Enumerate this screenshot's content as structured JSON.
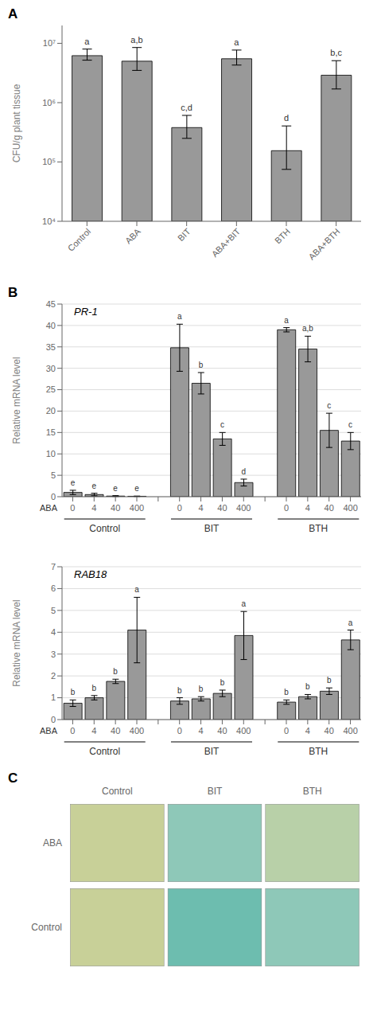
{
  "chart_data": [
    {
      "type": "bar",
      "categories": [
        "Control",
        "ABA",
        "BIT",
        "ABA+BIT",
        "BTH",
        "ABA+BTH"
      ],
      "values": [
        6200000,
        5000000,
        380000,
        5500000,
        155000,
        2900000
      ],
      "errors_lower": [
        1000000,
        1500000,
        130000,
        1200000,
        80000,
        1200000
      ],
      "errors_upper": [
        1800000,
        3500000,
        230000,
        2200000,
        250000,
        2200000
      ],
      "bar_labels": [
        "a",
        "a,b",
        "c,d",
        "a",
        "d",
        "b,c"
      ],
      "ylabel": "CFU/g plant tissue",
      "log": "y",
      "ylim": [
        10000,
        20000000
      ],
      "yticks": [
        {
          "value": 10000,
          "label": "10⁴"
        },
        {
          "value": 100000,
          "label": "10⁵"
        },
        {
          "value": 1000000,
          "label": "10⁶"
        },
        {
          "value": 10000000,
          "label": "10⁷"
        }
      ],
      "color": "#999999",
      "annotations": [
        "A"
      ]
    },
    {
      "type": "bar",
      "title": "PR-1",
      "groups": [
        "Control",
        "BIT",
        "BTH"
      ],
      "categories": [
        "0",
        "4",
        "40",
        "400",
        "0",
        "4",
        "40",
        "400",
        "0",
        "4",
        "40",
        "400"
      ],
      "values": [
        1.0,
        0.5,
        0.15,
        0.1,
        34.8,
        26.5,
        13.5,
        3.3,
        39.0,
        34.5,
        15.5,
        13.0
      ],
      "errors": [
        0.5,
        0.3,
        0.1,
        0.05,
        5.5,
        2.5,
        1.5,
        0.8,
        0.5,
        3.0,
        4.0,
        2.0
      ],
      "bar_labels": [
        "e",
        "e",
        "e",
        "e",
        "a",
        "b",
        "c",
        "d",
        "a",
        "a,b",
        "c",
        "c"
      ],
      "xlabel": "ABA",
      "ylabel": "Relative mRNA level",
      "ylim": [
        0,
        45
      ],
      "yticks": [
        0,
        5,
        10,
        15,
        20,
        25,
        30,
        35,
        40,
        45
      ],
      "grid": true,
      "color": "#999999",
      "annotations": [
        "B"
      ]
    },
    {
      "type": "bar",
      "title": "RAB18",
      "groups": [
        "Control",
        "BIT",
        "BTH"
      ],
      "categories": [
        "0",
        "4",
        "40",
        "400",
        "0",
        "4",
        "40",
        "400",
        "0",
        "4",
        "40",
        "400"
      ],
      "values": [
        0.75,
        1.0,
        1.75,
        4.1,
        0.85,
        0.95,
        1.2,
        3.85,
        0.8,
        1.05,
        1.3,
        3.65
      ],
      "errors": [
        0.15,
        0.1,
        0.1,
        1.5,
        0.15,
        0.1,
        0.15,
        1.1,
        0.1,
        0.1,
        0.15,
        0.45
      ],
      "bar_labels": [
        "b",
        "b",
        "b",
        "a",
        "b",
        "b",
        "b",
        "a",
        "b",
        "b",
        "b",
        "a"
      ],
      "xlabel": "ABA",
      "ylabel": "Relative mRNA level",
      "ylim": [
        0,
        7
      ],
      "yticks": [
        0,
        1,
        2,
        3,
        4,
        5,
        6,
        7
      ],
      "grid": true,
      "color": "#999999"
    },
    {
      "type": "heatmap",
      "categories": [
        "Control",
        "BIT",
        "BTH"
      ],
      "series": [
        {
          "name": "Control",
          "colors": [
            "#c8d098",
            "#6dbdaf",
            "#8ec8b8"
          ]
        },
        {
          "name": "ABA",
          "colors": [
            "#c8d098",
            "#8ec8b8",
            "#b8d0a8"
          ]
        }
      ],
      "annotations": [
        "C"
      ]
    }
  ]
}
